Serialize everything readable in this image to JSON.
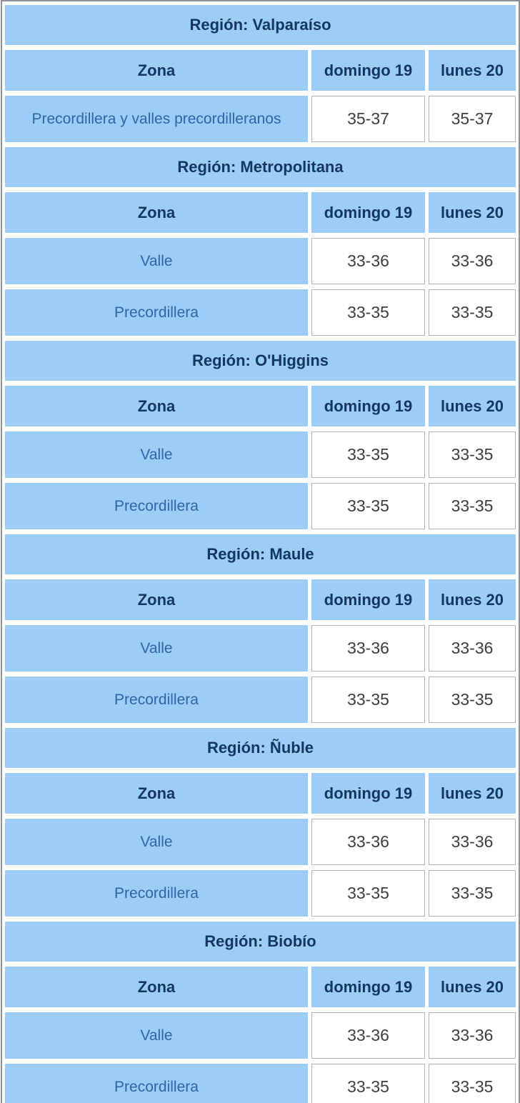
{
  "chart_data": {
    "type": "table",
    "columns": {
      "zone": "Zona",
      "day1": "domingo 19",
      "day2": "lunes 20"
    },
    "regions": [
      {
        "label": "Región: Valparaíso",
        "rows": [
          {
            "zone": "Precordillera y valles precordilleranos",
            "day1": "35-37",
            "day2": "35-37"
          }
        ]
      },
      {
        "label": "Región: Metropolitana",
        "rows": [
          {
            "zone": "Valle",
            "day1": "33-36",
            "day2": "33-36"
          },
          {
            "zone": "Precordillera",
            "day1": "33-35",
            "day2": "33-35"
          }
        ]
      },
      {
        "label": "Región: O'Higgins",
        "rows": [
          {
            "zone": "Valle",
            "day1": "33-35",
            "day2": "33-35"
          },
          {
            "zone": "Precordillera",
            "day1": "33-35",
            "day2": "33-35"
          }
        ]
      },
      {
        "label": "Región: Maule",
        "rows": [
          {
            "zone": "Valle",
            "day1": "33-36",
            "day2": "33-36"
          },
          {
            "zone": "Precordillera",
            "day1": "33-35",
            "day2": "33-35"
          }
        ]
      },
      {
        "label": "Región: Ñuble",
        "rows": [
          {
            "zone": "Valle",
            "day1": "33-36",
            "day2": "33-36"
          },
          {
            "zone": "Precordillera",
            "day1": "33-35",
            "day2": "33-35"
          }
        ]
      },
      {
        "label": "Región: Biobío",
        "rows": [
          {
            "zone": "Valle",
            "day1": "33-36",
            "day2": "33-36"
          },
          {
            "zone": "Precordillera",
            "day1": "33-35",
            "day2": "33-35"
          }
        ]
      }
    ]
  },
  "colors": {
    "cell_blue": "#9bcdf7",
    "header_text": "#14375f",
    "zone_text": "#2f66a6",
    "value_text": "#3e3e3e",
    "value_cell_border": "#b5b5b5",
    "outer_border": "#8d9299",
    "background": "#ffffff"
  }
}
